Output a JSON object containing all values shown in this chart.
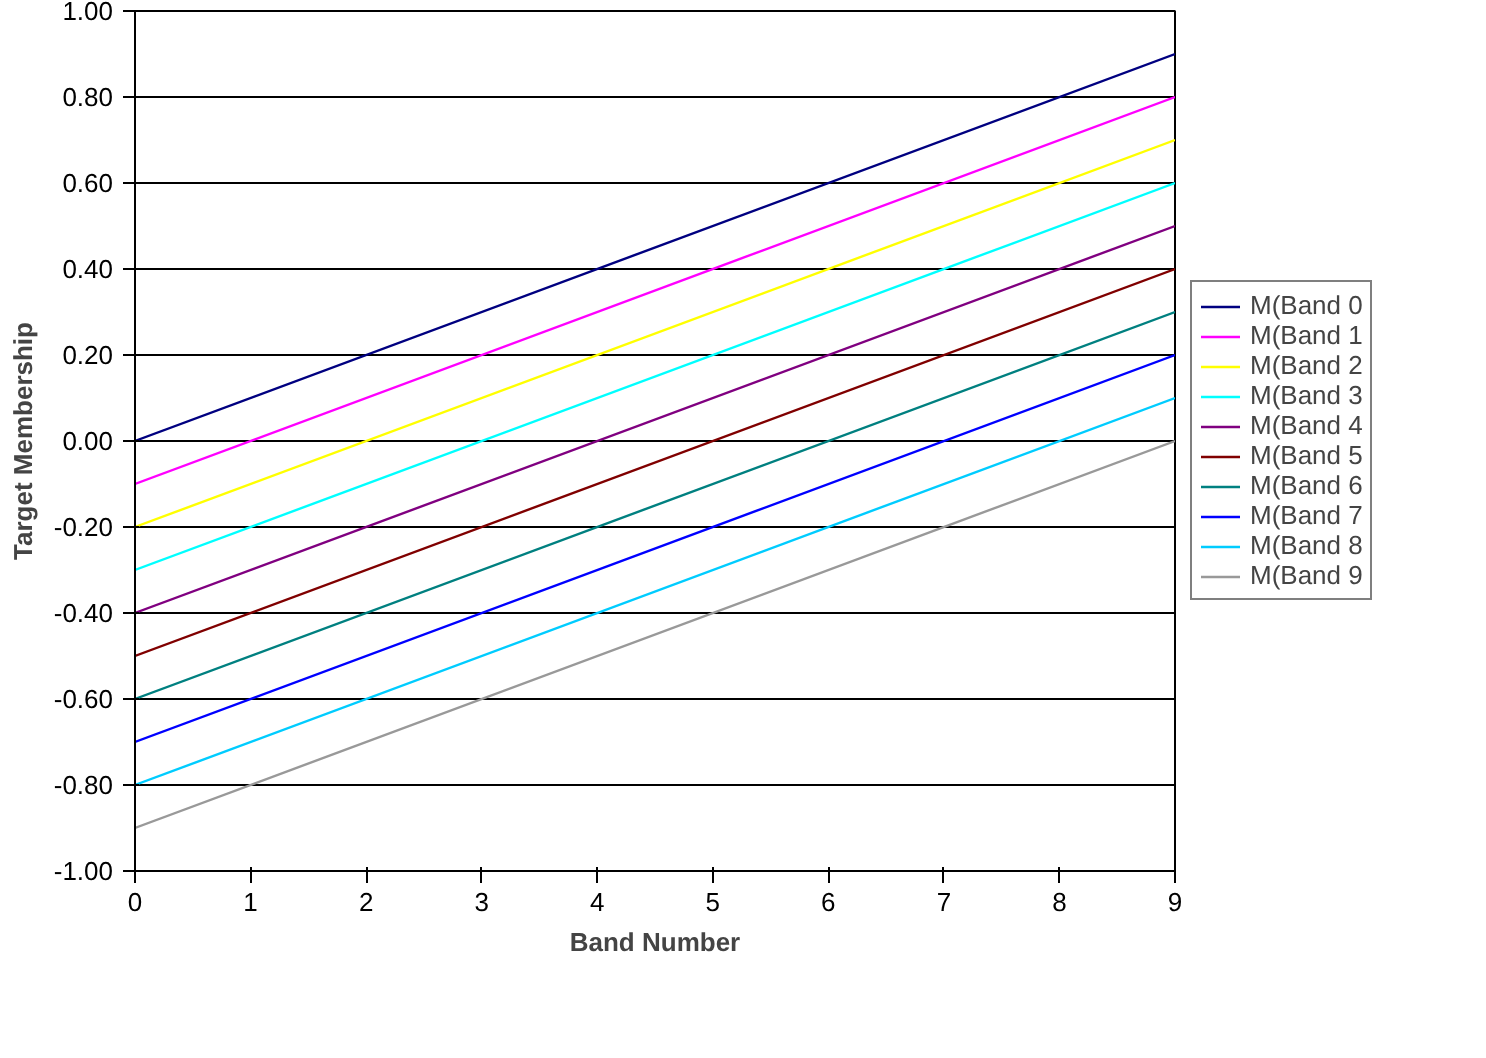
{
  "chart_data": {
    "type": "line",
    "xlabel": "Band Number",
    "ylabel": "Target Membership",
    "xlim": [
      0,
      9
    ],
    "xticks": [
      0,
      1,
      2,
      3,
      4,
      5,
      6,
      7,
      8,
      9
    ],
    "ylim": [
      -1,
      1
    ],
    "yticks": [
      {
        "value": -1,
        "label": "-1.00"
      },
      {
        "value": -0.8,
        "label": "-0.80"
      },
      {
        "value": -0.6,
        "label": "-0.60"
      },
      {
        "value": -0.4,
        "label": "-0.40"
      },
      {
        "value": -0.2,
        "label": "-0.20"
      },
      {
        "value": 0,
        "label": "0.00"
      },
      {
        "value": 0.2,
        "label": "0.20"
      },
      {
        "value": 0.4,
        "label": "0.40"
      },
      {
        "value": 0.6,
        "label": "0.60"
      },
      {
        "value": 0.8,
        "label": "0.80"
      },
      {
        "value": 1,
        "label": "1.00"
      }
    ],
    "grid": "y",
    "legend": "right",
    "marker": "none",
    "line_style": "solid",
    "x": [
      0,
      9
    ],
    "series": [
      {
        "name": "M(Band 0",
        "color": "#000080",
        "values": [
          0,
          0.9
        ]
      },
      {
        "name": "M(Band 1",
        "color": "#ff00ff",
        "values": [
          -0.1,
          0.8
        ]
      },
      {
        "name": "M(Band 2",
        "color": "#ffff00",
        "values": [
          -0.2,
          0.7
        ]
      },
      {
        "name": "M(Band 3",
        "color": "#00ffff",
        "values": [
          -0.3,
          0.6
        ]
      },
      {
        "name": "M(Band 4",
        "color": "#800080",
        "values": [
          -0.4,
          0.5
        ]
      },
      {
        "name": "M(Band 5",
        "color": "#800000",
        "values": [
          -0.5,
          0.4
        ]
      },
      {
        "name": "M(Band 6",
        "color": "#008080",
        "values": [
          -0.6,
          0.3
        ]
      },
      {
        "name": "M(Band 7",
        "color": "#0000ff",
        "values": [
          -0.7,
          0.2
        ]
      },
      {
        "name": "M(Band 8",
        "color": "#00ccff",
        "values": [
          -0.8,
          0.1
        ]
      },
      {
        "name": "M(Band 9",
        "color": "#999999",
        "values": [
          -0.9,
          0.0
        ]
      }
    ]
  }
}
